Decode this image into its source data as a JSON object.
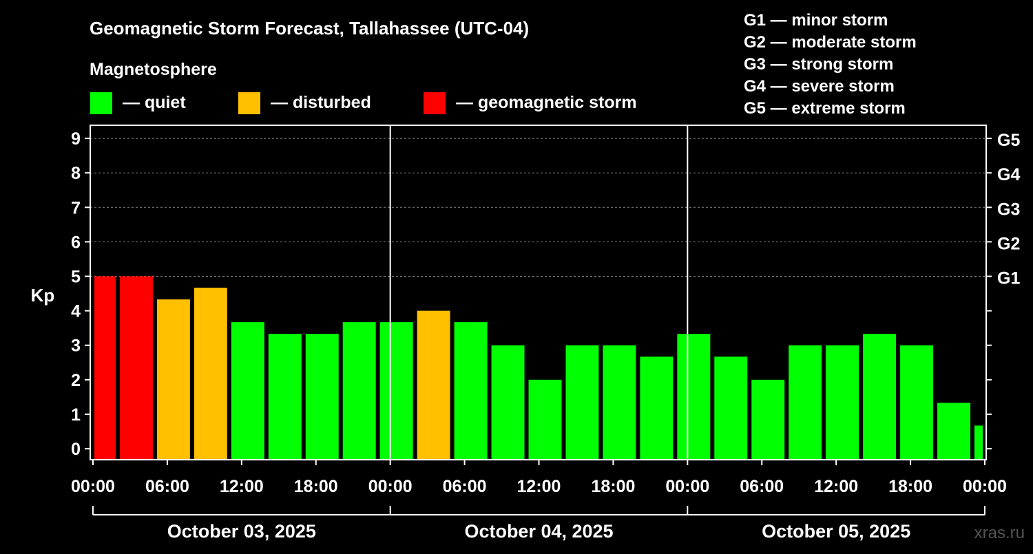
{
  "chart_data": {
    "type": "bar",
    "title": "Geomagnetic Storm Forecast, Tallahassee (UTC-04)",
    "legend_title": "Magnetosphere",
    "legend": [
      {
        "label": "— quiet",
        "color": "#00ff00"
      },
      {
        "label": "— disturbed",
        "color": "#ffc000"
      },
      {
        "label": "— geomagnetic storm",
        "color": "#ff0000"
      }
    ],
    "storm_scale": [
      "G1 — minor storm",
      "G2 — moderate storm",
      "G3 — strong storm",
      "G4 — severe storm",
      "G5 — extreme storm"
    ],
    "ylabel": "Kp",
    "ylim": [
      -0.33,
      9.33
    ],
    "yticks": [
      0,
      1,
      2,
      3,
      4,
      5,
      6,
      7,
      8,
      9
    ],
    "right_ticks": [
      {
        "kp": 5,
        "label": "G1"
      },
      {
        "kp": 6,
        "label": "G2"
      },
      {
        "kp": 7,
        "label": "G3"
      },
      {
        "kp": 8,
        "label": "G4"
      },
      {
        "kp": 9,
        "label": "G5"
      }
    ],
    "x_hours_range": [
      0,
      72
    ],
    "xtick_labels": [
      "00:00",
      "06:00",
      "12:00",
      "18:00",
      "00:00",
      "06:00",
      "12:00",
      "18:00",
      "00:00",
      "06:00",
      "12:00",
      "18:00",
      "00:00"
    ],
    "dates": [
      "October 03, 2025",
      "October 04, 2025",
      "October 05, 2025"
    ],
    "bars": [
      {
        "start": 0,
        "end": 2,
        "kp": 5.0
      },
      {
        "start": 2,
        "end": 5,
        "kp": 5.0
      },
      {
        "start": 5,
        "end": 8,
        "kp": 4.33
      },
      {
        "start": 8,
        "end": 11,
        "kp": 4.67
      },
      {
        "start": 11,
        "end": 14,
        "kp": 3.67
      },
      {
        "start": 14,
        "end": 17,
        "kp": 3.33
      },
      {
        "start": 17,
        "end": 20,
        "kp": 3.33
      },
      {
        "start": 20,
        "end": 23,
        "kp": 3.67
      },
      {
        "start": 23,
        "end": 26,
        "kp": 3.67
      },
      {
        "start": 26,
        "end": 29,
        "kp": 4.0
      },
      {
        "start": 29,
        "end": 32,
        "kp": 3.67
      },
      {
        "start": 32,
        "end": 35,
        "kp": 3.0
      },
      {
        "start": 35,
        "end": 38,
        "kp": 2.0
      },
      {
        "start": 38,
        "end": 41,
        "kp": 3.0
      },
      {
        "start": 41,
        "end": 44,
        "kp": 3.0
      },
      {
        "start": 44,
        "end": 47,
        "kp": 2.67
      },
      {
        "start": 47,
        "end": 50,
        "kp": 3.33
      },
      {
        "start": 50,
        "end": 53,
        "kp": 2.67
      },
      {
        "start": 53,
        "end": 56,
        "kp": 2.0
      },
      {
        "start": 56,
        "end": 59,
        "kp": 3.0
      },
      {
        "start": 59,
        "end": 62,
        "kp": 3.0
      },
      {
        "start": 62,
        "end": 65,
        "kp": 3.33
      },
      {
        "start": 65,
        "end": 68,
        "kp": 3.0
      },
      {
        "start": 68,
        "end": 71,
        "kp": 1.33
      },
      {
        "start": 71,
        "end": 72,
        "kp": 0.67
      }
    ],
    "colors": {
      "quiet": "#00ff00",
      "disturbed": "#ffc000",
      "storm": "#ff0000"
    },
    "grid": "dashed at Kp 5-9"
  },
  "watermark": "xras.ru"
}
